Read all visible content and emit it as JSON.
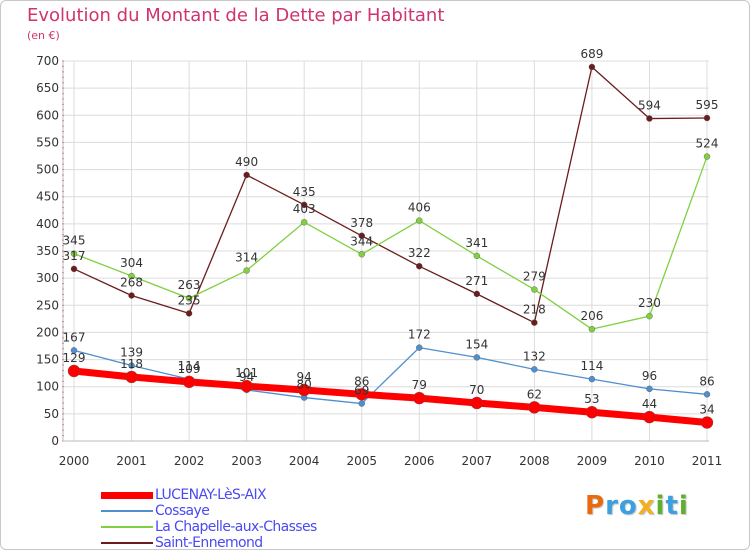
{
  "chart_data": {
    "type": "line",
    "title": "Evolution du Montant de la Dette par Habitant",
    "unit_label": "(en €)",
    "categories": [
      "2000",
      "2001",
      "2002",
      "2003",
      "2004",
      "2005",
      "2006",
      "2007",
      "2008",
      "2009",
      "2010",
      "2011"
    ],
    "ylim": [
      0,
      700
    ],
    "yticks": [
      0,
      50,
      100,
      150,
      200,
      250,
      300,
      350,
      400,
      450,
      500,
      550,
      600,
      650,
      700
    ],
    "grid": true,
    "legend_position": "bottom-left",
    "series": [
      {
        "name": "LUCENAY-LèS-AIX",
        "color": "#ff0000",
        "values": [
          129,
          118,
          109,
          101,
          94,
          86,
          79,
          70,
          62,
          53,
          44,
          34
        ]
      },
      {
        "name": "Cossaye",
        "color": "#4f8fd0",
        "values": [
          167,
          139,
          114,
          94,
          80,
          69,
          172,
          154,
          132,
          114,
          96,
          86
        ]
      },
      {
        "name": "La Chapelle-aux-Chasses",
        "color": "#80d040",
        "values": [
          345,
          304,
          263,
          314,
          403,
          344,
          406,
          341,
          279,
          206,
          230,
          524
        ]
      },
      {
        "name": "Saint-Ennemond",
        "color": "#6b1c1c",
        "values": [
          317,
          268,
          235,
          490,
          435,
          378,
          322,
          271,
          218,
          689,
          594,
          595
        ]
      }
    ]
  },
  "logo": {
    "letters": [
      {
        "ch": "P",
        "color": "#e86a10"
      },
      {
        "ch": "r",
        "color": "#3aa0e0"
      },
      {
        "ch": "o",
        "color": "#3aa0e0"
      },
      {
        "ch": "x",
        "color": "#f0b020"
      },
      {
        "ch": "i",
        "color": "#60b030"
      },
      {
        "ch": "t",
        "color": "#3aa0e0"
      },
      {
        "ch": "i",
        "color": "#60b030"
      }
    ]
  }
}
